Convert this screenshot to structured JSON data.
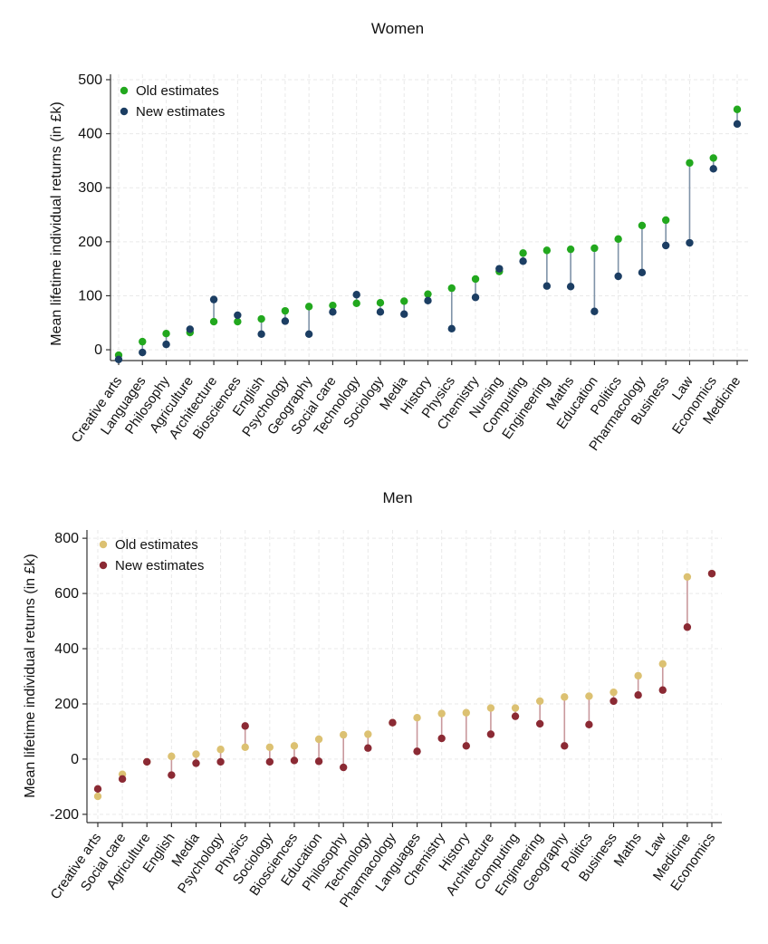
{
  "chart_data": [
    {
      "type": "scatter",
      "title": "Women",
      "ylabel": "Mean lifetime individual returns (in £k)",
      "ylim": [
        -20,
        510
      ],
      "yticks": [
        0,
        100,
        200,
        300,
        400,
        500
      ],
      "grid": true,
      "legend_position": "top-left",
      "categories": [
        "Creative arts",
        "Languages",
        "Philosophy",
        "Agriculture",
        "Architecture",
        "Biosciences",
        "English",
        "Psychology",
        "Geography",
        "Social care",
        "Technology",
        "Sociology",
        "Media",
        "History",
        "Physics",
        "Chemistry",
        "Nursing",
        "Computing",
        "Engineering",
        "Maths",
        "Education",
        "Politics",
        "Pharmacology",
        "Business",
        "Law",
        "Economics",
        "Medicine"
      ],
      "series": [
        {
          "name": "Old estimates",
          "color": "#22a81e",
          "values": [
            -10,
            15,
            30,
            32,
            52,
            52,
            57,
            72,
            80,
            82,
            86,
            87,
            90,
            103,
            114,
            131,
            145,
            179,
            184,
            186,
            188,
            205,
            230,
            240,
            346,
            355,
            445
          ]
        },
        {
          "name": "New estimates",
          "color": "#1c3e63",
          "values": [
            -18,
            -5,
            10,
            38,
            93,
            64,
            29,
            53,
            29,
            70,
            102,
            70,
            66,
            91,
            39,
            97,
            150,
            164,
            118,
            117,
            71,
            136,
            143,
            193,
            198,
            335,
            418
          ]
        }
      ],
      "connector_color": "#7f93a8"
    },
    {
      "type": "scatter",
      "title": "Men",
      "ylabel": "Mean lifetime individual returns (in £k)",
      "ylim": [
        -230,
        830
      ],
      "yticks": [
        -200,
        0,
        200,
        400,
        600,
        800
      ],
      "grid": true,
      "legend_position": "top-left",
      "categories": [
        "Creative arts",
        "Social care",
        "Agriculture",
        "English",
        "Media",
        "Psychology",
        "Physics",
        "Sociology",
        "Biosciences",
        "Education",
        "Philosophy",
        "Technology",
        "Pharmacology",
        "Languages",
        "Chemistry",
        "History",
        "Architecture",
        "Computing",
        "Engineering",
        "Geography",
        "Politics",
        "Business",
        "Maths",
        "Law",
        "Medicine",
        "Economics"
      ],
      "series": [
        {
          "name": "Old estimates",
          "color": "#dcc172",
          "values": [
            -135,
            -55,
            -10,
            10,
            18,
            35,
            43,
            43,
            48,
            72,
            88,
            90,
            132,
            150,
            165,
            168,
            185,
            185,
            210,
            225,
            228,
            242,
            302,
            345,
            660,
            672
          ]
        },
        {
          "name": "New estimates",
          "color": "#8b2a34",
          "values": [
            -108,
            -72,
            -10,
            -58,
            -15,
            -10,
            120,
            -10,
            -5,
            -8,
            -30,
            40,
            132,
            28,
            75,
            48,
            90,
            155,
            128,
            48,
            125,
            210,
            232,
            250,
            478,
            672
          ]
        }
      ],
      "connector_color": "#c9999d"
    }
  ]
}
